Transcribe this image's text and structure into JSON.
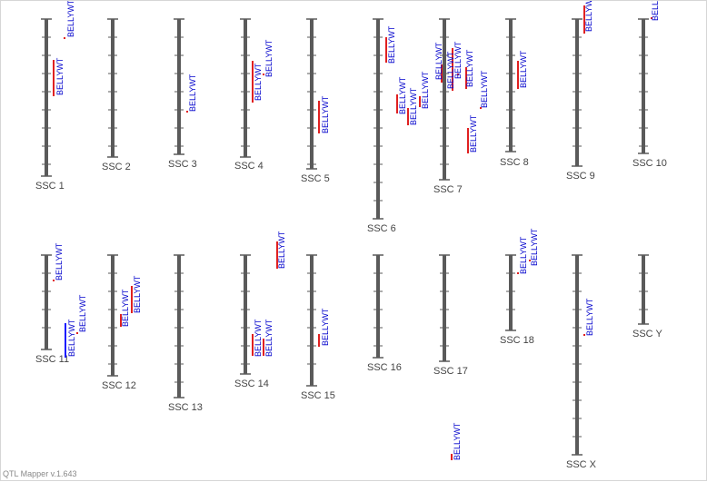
{
  "app": {
    "version_text": "QTL Mapper v.1.643"
  },
  "colors": {
    "chromosome": "#5a5a5a",
    "tick": "#5a5a5a",
    "qtl_bar_red": "#e02020",
    "qtl_bar_blue": "#1a1aff",
    "qtl_text": "#0000cc",
    "label": "#444444"
  },
  "chromosomes": [
    {
      "id": "chr-1",
      "label": "SSC 1"
    },
    {
      "id": "chr-2",
      "label": "SSC 2"
    },
    {
      "id": "chr-3",
      "label": "SSC 3"
    },
    {
      "id": "chr-4",
      "label": "SSC 4"
    },
    {
      "id": "chr-5",
      "label": "SSC 5"
    },
    {
      "id": "chr-6",
      "label": "SSC 6"
    },
    {
      "id": "chr-7",
      "label": "SSC 7"
    },
    {
      "id": "chr-8",
      "label": "SSC 8"
    },
    {
      "id": "chr-9",
      "label": "SSC 9"
    },
    {
      "id": "chr-10",
      "label": "SSC 10"
    },
    {
      "id": "chr-11",
      "label": "SSC 11"
    },
    {
      "id": "chr-12",
      "label": "SSC 12"
    },
    {
      "id": "chr-13",
      "label": "SSC 13"
    },
    {
      "id": "chr-14",
      "label": "SSC 14"
    },
    {
      "id": "chr-15",
      "label": "SSC 15"
    },
    {
      "id": "chr-16",
      "label": "SSC 16"
    },
    {
      "id": "chr-17",
      "label": "SSC 17"
    },
    {
      "id": "chr-18",
      "label": "SSC 18"
    },
    {
      "id": "chr-x",
      "label": "SSC X"
    },
    {
      "id": "chr-y",
      "label": "SSC Y"
    }
  ],
  "qtls": [
    {
      "chr": "chr-1",
      "trait": "BELLYWT"
    },
    {
      "chr": "chr-1",
      "trait": "BELLYWT"
    },
    {
      "chr": "chr-3",
      "trait": "BELLYWT"
    },
    {
      "chr": "chr-4",
      "trait": "BELLYWT"
    },
    {
      "chr": "chr-4",
      "trait": "BELLYWT"
    },
    {
      "chr": "chr-5",
      "trait": "BELLYWT"
    },
    {
      "chr": "chr-6",
      "trait": "BELLYWT"
    },
    {
      "chr": "chr-6",
      "trait": "BELLYWT"
    },
    {
      "chr": "chr-6",
      "trait": "BELLYWT"
    },
    {
      "chr": "chr-6",
      "trait": "BELLYWT"
    },
    {
      "chr": "chr-7",
      "trait": "BELLYWT"
    },
    {
      "chr": "chr-7",
      "trait": "BELLYWT"
    },
    {
      "chr": "chr-7",
      "trait": "BELLYWT"
    },
    {
      "chr": "chr-7",
      "trait": "BELLYWT"
    },
    {
      "chr": "chr-7",
      "trait": "BELLYWT"
    },
    {
      "chr": "chr-7",
      "trait": "BELLYWT"
    },
    {
      "chr": "chr-8",
      "trait": "BELLYWT"
    },
    {
      "chr": "chr-9",
      "trait": "BELLYWT"
    },
    {
      "chr": "chr-10",
      "trait": "BELLYWT"
    },
    {
      "chr": "chr-11",
      "trait": "BELLYWT"
    },
    {
      "chr": "chr-11",
      "trait": "BELLYWT"
    },
    {
      "chr": "chr-11",
      "trait": "BELLYWT"
    },
    {
      "chr": "chr-12",
      "trait": "BELLYWT"
    },
    {
      "chr": "chr-12",
      "trait": "BELLYWT"
    },
    {
      "chr": "chr-14",
      "trait": "BELLYWT"
    },
    {
      "chr": "chr-14",
      "trait": "BELLYWT"
    },
    {
      "chr": "chr-14",
      "trait": "BELLYWT"
    },
    {
      "chr": "chr-15",
      "trait": "BELLYWT"
    },
    {
      "chr": "chr-17",
      "trait": "BELLYWT"
    },
    {
      "chr": "chr-18",
      "trait": "BELLYWT"
    },
    {
      "chr": "chr-18",
      "trait": "BELLYWT"
    },
    {
      "chr": "chr-x",
      "trait": "BELLYWT"
    }
  ]
}
